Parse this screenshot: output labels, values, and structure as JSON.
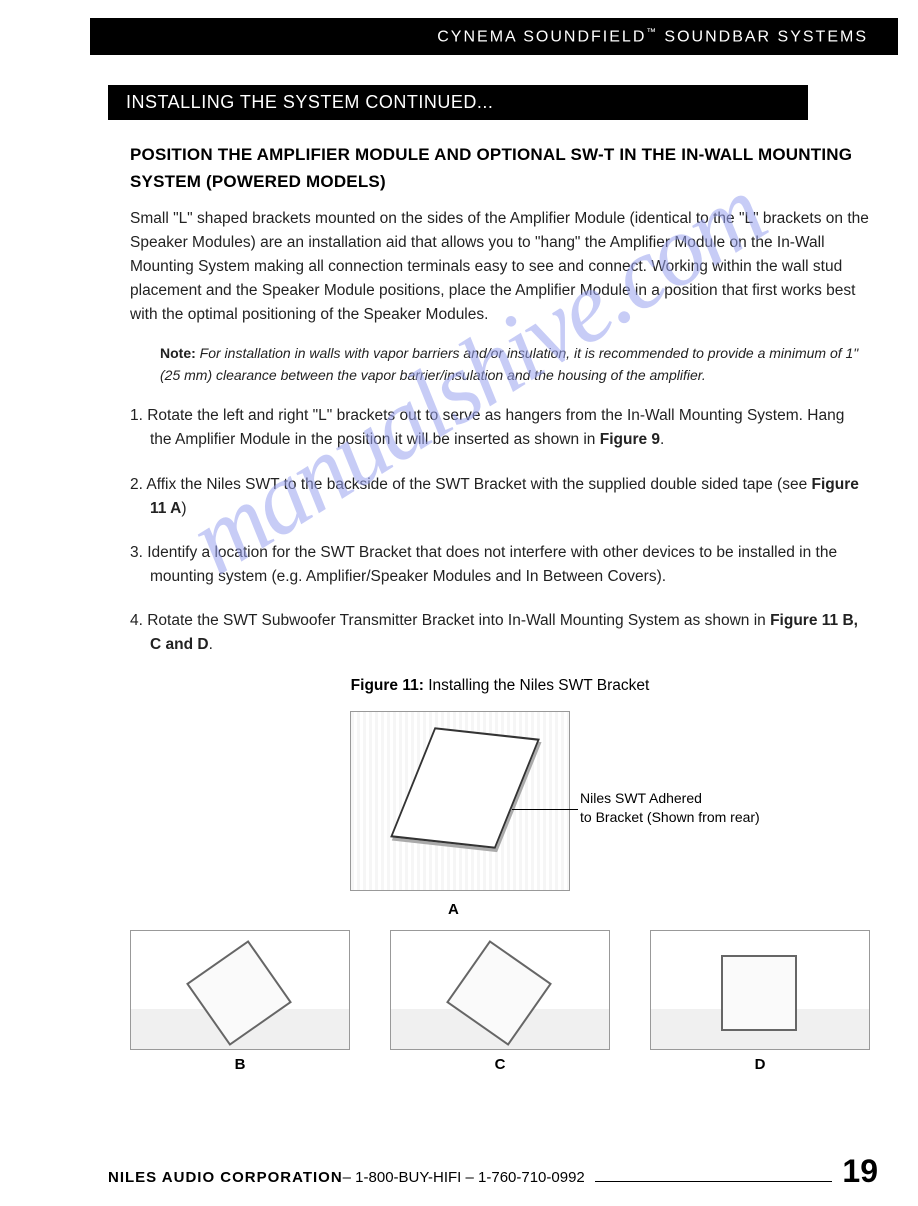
{
  "header": {
    "title": "CYNEMA SOUNDFIELD",
    "tm": "™",
    "tail": " SOUNDBAR SYSTEMS"
  },
  "section_bar": "INSTALLING THE SYSTEM CONTINUED...",
  "sub_heading": "POSITION THE AMPLIFIER MODULE AND OPTIONAL SW-T IN THE IN-WALL MOUNTING SYSTEM (POWERED MODELS)",
  "intro": "Small \"L\" shaped brackets mounted on the sides of the Amplifier Module (identical to the \"L\" brackets on the Speaker Modules) are an installation aid that allows you to \"hang\" the Amplifier Module on the In-Wall Mounting System making all connection terminals easy to see and connect. Working within the wall stud placement and the Speaker Module positions, place the Amplifier Module in a position that first works best with the optimal positioning of the Speaker Modules.",
  "note": {
    "label": "Note:",
    "text": "  For installation in walls with vapor barriers and/or insulation, it is recommended to provide a minimum of 1\" (25 mm) clearance between the vapor barrier/insulation and the housing of the amplifier."
  },
  "steps": {
    "s1_pre": "1. Rotate the left and right \"L\" brackets out to serve as hangers from the In-Wall Mounting System. Hang the Amplifier Module in the position it will be inserted as shown in ",
    "s1_bold": "Figure 9",
    "s1_post": ".",
    "s2_pre": "2. Affix the Niles SWT to the backside of the SWT Bracket with the supplied double sided tape (see ",
    "s2_bold": "Figure 11 A",
    "s2_post": ")",
    "s3": "3. Identify a location for the SWT Bracket that does not interfere with other devices to be installed in the mounting system (e.g. Amplifier/Speaker Modules and In Between Covers).",
    "s4_pre": "4. Rotate the SWT Subwoofer Transmitter Bracket into In-Wall Mounting System as shown in ",
    "s4_bold": "Figure 11 B, C and D",
    "s4_post": "."
  },
  "figure": {
    "label": "Figure 11:",
    "caption": " Installing the Niles SWT Bracket",
    "callout_line1": "Niles SWT Adhered",
    "callout_line2": "to Bracket (Shown from rear)",
    "labels": {
      "a": "A",
      "b": "B",
      "c": "C",
      "d": "D"
    }
  },
  "footer": {
    "company": "NILES AUDIO CORPORATION",
    "contact": " – 1-800-BUY-HIFI – 1-760-710-0992",
    "page": "19"
  },
  "watermark": "manualshive.com",
  "colors": {
    "bar_bg": "#000000",
    "bar_fg": "#ffffff",
    "text": "#222222",
    "watermark": "#9aa3f0"
  }
}
